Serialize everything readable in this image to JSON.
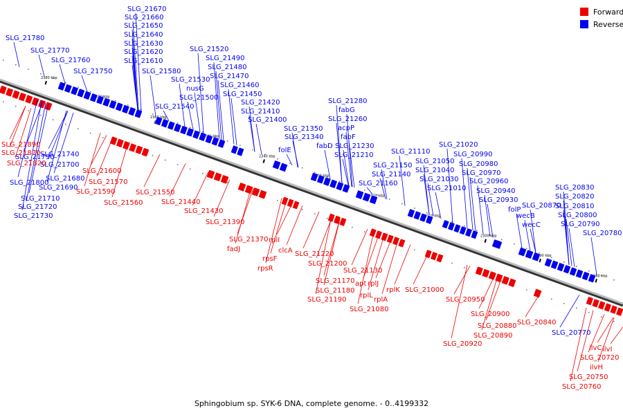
{
  "colors": {
    "forward": "#ee0000",
    "reverse": "#0000ee",
    "axis": "#888888"
  },
  "legend": [
    {
      "label": "Forward",
      "color": "#ee0000"
    },
    {
      "label": "Reverse",
      "color": "#0000ee"
    }
  ],
  "caption": "Sphingobium sp. SYK-6 DNA, complete genome. - 0..4199332",
  "ticks": [
    "2380 kbp",
    "2370 kbp",
    "2360 kbp",
    "2350 kbp",
    "2340 kbp",
    "2330 kbp",
    "2320 kbp",
    "2310 kbp",
    "2300 kbp",
    "2290 kbp",
    "2280 kbp"
  ],
  "reverse_labels": [
    "SLG_21780",
    "SLG_21770",
    "SLG_21760",
    "SLG_21750",
    "SLG_21670",
    "SLG_21660",
    "SLG_21650",
    "SLG_21640",
    "SLG_21630",
    "SLG_21620",
    "SLG_21610",
    "SLG_21580",
    "SLG_21520",
    "SLG_21490",
    "SLG_21480",
    "SLG_21470",
    "SLG_21530",
    "nusG",
    "SLG_21460",
    "SLG_21500",
    "SLG_21450",
    "SLG_21540",
    "SLG_21420",
    "SLG_21410",
    "SLG_21400",
    "SLG_21280",
    "fabG",
    "SLG_21260",
    "SLG_21350",
    "acpP",
    "SLG_21340",
    "fabF",
    "folE",
    "fabD",
    "SLG_21230",
    "SLG_21210",
    "SLG_21110",
    "SLG_21150",
    "SLG_21140",
    "SLG_21160",
    "SLG_21020",
    "SLG_21050",
    "SLG_20990",
    "SLG_21040",
    "SLG_20980",
    "SLG_21030",
    "SLG_20970",
    "SLG_21010",
    "SLG_20960",
    "SLG_20940",
    "SLG_20930",
    "folP",
    "SLG_20870",
    "wecB",
    "wecC",
    "SLG_20830",
    "SLG_20820",
    "SLG_20810",
    "SLG_20800",
    "SLG_20790",
    "SLG_20780",
    "SLG_21740",
    "SLG_21790",
    "SLG_21700",
    "SLG_21680",
    "SLG_21800",
    "SLG_21690",
    "SLG_21710",
    "SLG_21720",
    "SLG_21730",
    "SLG_20770"
  ],
  "forward_labels": [
    "SLG_21890",
    "SLG_21870",
    "SLG_21820",
    "SLG_21600",
    "SLG_21570",
    "SLG_21590",
    "SLG_21550",
    "SLG_21560",
    "SLG_21440",
    "SLG_21430",
    "SLG_21390",
    "SLG_21370",
    "rplI",
    "fadJ",
    "rpsF",
    "clcA",
    "rpsR",
    "SLG_21220",
    "SLG_21200",
    "SLG_21130",
    "apt",
    "rplJ",
    "SLG_21170",
    "SLG_21180",
    "rplL",
    "rplK",
    "SLG_21190",
    "rplA",
    "SLG_21080",
    "SLG_21000",
    "SLG_20950",
    "SLG_20900",
    "SLG_20880",
    "SLG_20890",
    "SLG_20920",
    "SLG_20840",
    "ilvC",
    "ilvI",
    "SLG_20720",
    "ilvH",
    "SLG_20750",
    "SLG_20760"
  ]
}
